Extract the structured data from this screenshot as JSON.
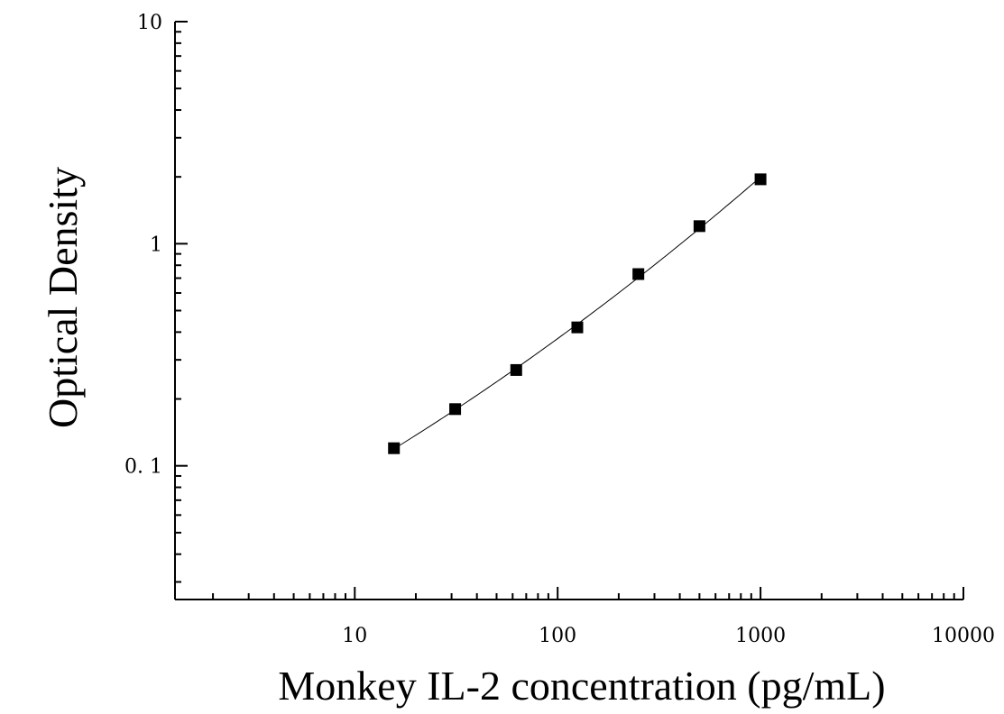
{
  "chart_data": {
    "type": "scatter",
    "title": "",
    "xlabel": "Monkey IL-2 concentration (pg/mL)",
    "ylabel": "Optical Density",
    "xscale": "log",
    "yscale": "log",
    "xlim": [
      1.3,
      10000
    ],
    "ylim": [
      0.025,
      10
    ],
    "xticks": [
      {
        "value": 10,
        "label": "10"
      },
      {
        "value": 100,
        "label": "100"
      },
      {
        "value": 1000,
        "label": "1000"
      },
      {
        "value": 10000,
        "label": "10000"
      }
    ],
    "yticks": [
      {
        "value": 0.1,
        "label": "0. 1"
      },
      {
        "value": 1,
        "label": "1"
      },
      {
        "value": 10,
        "label": "10"
      }
    ],
    "grid": false,
    "marker": "square",
    "fit_line": true,
    "series": [
      {
        "x": [
          15.6,
          31.25,
          62.5,
          125,
          250,
          500,
          1000
        ],
        "y": [
          0.12,
          0.18,
          0.27,
          0.42,
          0.73,
          1.2,
          1.95
        ]
      }
    ]
  }
}
